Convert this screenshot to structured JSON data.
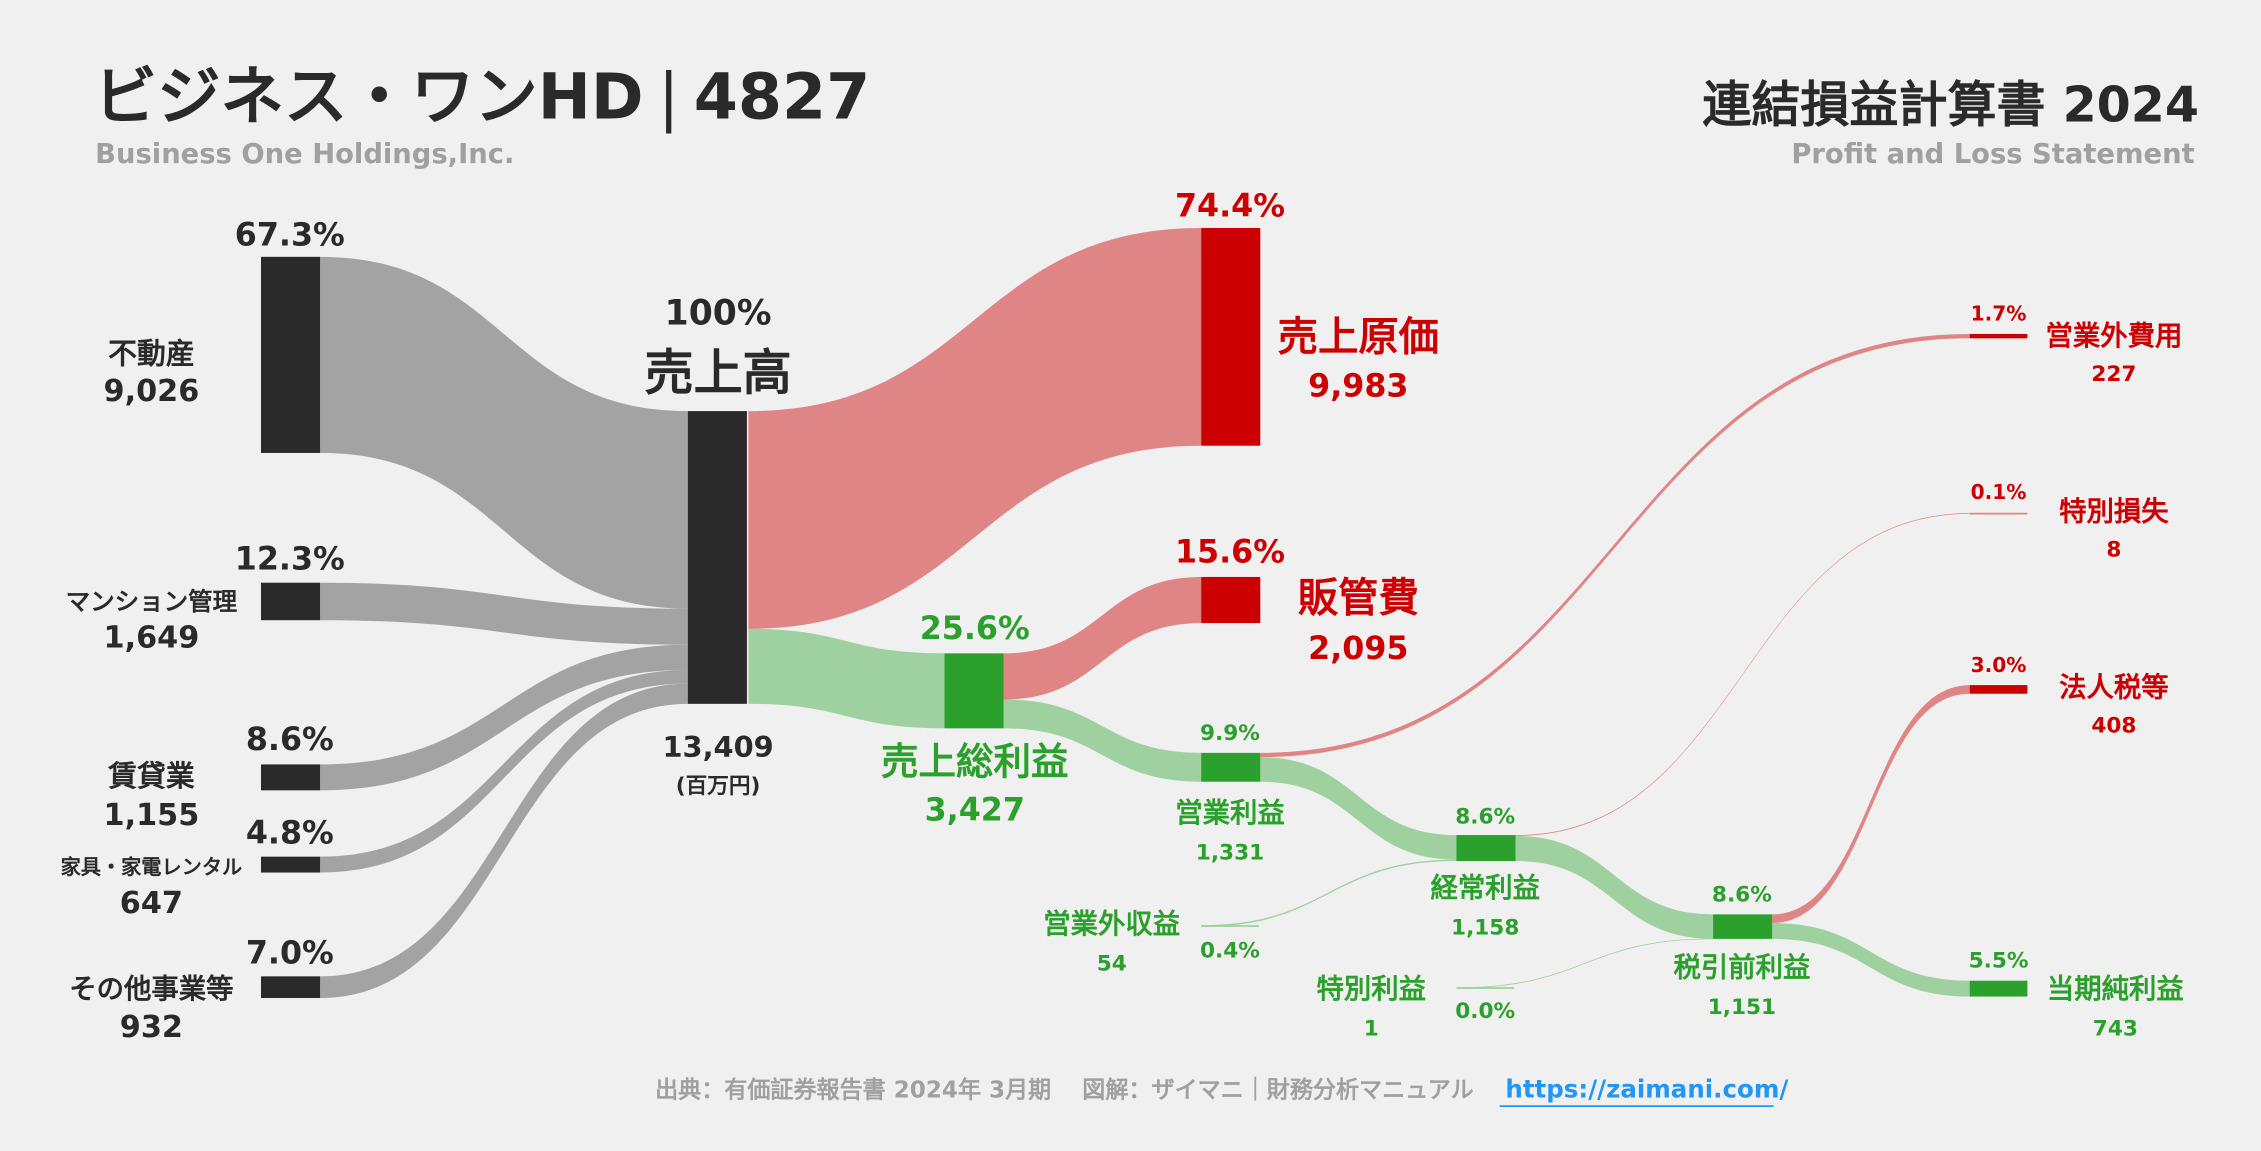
{
  "header": {
    "company": "ビジネス・ワンHD",
    "separator": "|",
    "code": "4827",
    "company_en": "Business One Holdings,Inc.",
    "statement": "連結損益計算書 2024",
    "statement_en": "Profit and Loss Statement"
  },
  "colors": {
    "revenue": "#2a2a2a",
    "segment_flow": "#a3a3a3",
    "cost": "#cc0000",
    "cost_flow": "#e08585",
    "profit": "#2ca02c",
    "profit_flow": "#9fd09f",
    "link": "#2196f3"
  },
  "segments": [
    {
      "label": "不動産",
      "value": "9,026",
      "pct": "67.3%"
    },
    {
      "label": "マンション管理",
      "value": "1,649",
      "pct": "12.3%"
    },
    {
      "label": "賃貸業",
      "value": "1,155",
      "pct": "8.6%"
    },
    {
      "label": "家具・家電レンタル",
      "value": "647",
      "pct": "4.8%"
    },
    {
      "label": "その他事業等",
      "value": "932",
      "pct": "7.0%"
    }
  ],
  "revenue": {
    "label": "売上高",
    "value": "13,409",
    "pct": "100%",
    "unit": "(百万円)"
  },
  "cogs": {
    "label": "売上原価",
    "value": "9,983",
    "pct": "74.4%"
  },
  "sga": {
    "label": "販管費",
    "value": "2,095",
    "pct": "15.6%"
  },
  "gross_profit": {
    "label": "売上総利益",
    "value": "3,427",
    "pct": "25.6%"
  },
  "operating_profit": {
    "label": "営業利益",
    "value": "1,331",
    "pct": "9.9%"
  },
  "non_op_expense": {
    "label": "営業外費用",
    "value": "227",
    "pct": "1.7%"
  },
  "non_op_income": {
    "label": "営業外収益",
    "value": "54",
    "pct": "0.4%"
  },
  "ordinary_profit": {
    "label": "経常利益",
    "value": "1,158",
    "pct": "8.6%"
  },
  "extraordinary_loss": {
    "label": "特別損失",
    "value": "8",
    "pct": "0.1%"
  },
  "extraordinary_income": {
    "label": "特別利益",
    "value": "1",
    "pct": "0.0%"
  },
  "pretax_profit": {
    "label": "税引前利益",
    "value": "1,151",
    "pct": "8.6%"
  },
  "income_tax": {
    "label": "法人税等",
    "value": "408",
    "pct": "3.0%"
  },
  "net_income": {
    "label": "当期純利益",
    "value": "743",
    "pct": "5.5%"
  },
  "footer": {
    "source": "出典：有価証券報告書 2024年 3月期　 図解：ザイマニ｜財務分析マニュアル",
    "link": "https://zaimani.com/"
  }
}
